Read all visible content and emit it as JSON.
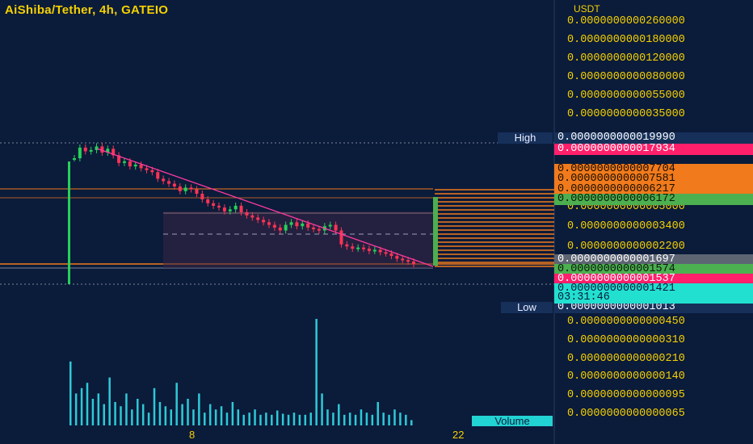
{
  "title": "AiShiba/Tether, 4h, GATEIO",
  "axis_unit": "USDT",
  "colors": {
    "background": "#0b1b3a",
    "axis_text": "#f5d100",
    "up_candle": "#26d15a",
    "down_candle": "#ff3355",
    "trendline": "#ff3aa0",
    "volume": "#2ec9d6",
    "orange": "#f07a1c",
    "green_tag": "#4caf50",
    "pink_tag": "#ff1f6b",
    "cyan_tag": "#22e0d0"
  },
  "y_axis_labels": [
    "0.0000000000260000",
    "0.0000000000180000",
    "0.0000000000120000",
    "0.0000000000080000",
    "0.0000000000055000",
    "0.0000000000035000",
    "0.0000000000018000",
    "0.0000000000005000",
    "0.0000000000003400",
    "0.0000000000002200"
  ],
  "volume_axis_labels": [
    "0.0000000000000450",
    "0.0000000000000310",
    "0.0000000000000210",
    "0.0000000000000140",
    "0.0000000000000095",
    "0.0000000000000065"
  ],
  "price_tags": [
    {
      "label": "High",
      "value": "0.0000000000019990",
      "kind": "navy"
    },
    {
      "label": "",
      "value": "0.0000000000017934",
      "kind": "pink"
    },
    {
      "label": "",
      "value": "0.0000000000007704",
      "kind": "orange"
    },
    {
      "label": "",
      "value": "0.0000000000007581",
      "kind": "orange"
    },
    {
      "label": "",
      "value": "0.0000000000006217",
      "kind": "orange"
    },
    {
      "label": "",
      "value": "0.0000000000006172",
      "kind": "green"
    },
    {
      "label": "",
      "value": "0.0000000000001697",
      "kind": "gray"
    },
    {
      "label": "",
      "value": "0.0000000000001574",
      "kind": "green"
    },
    {
      "label": "",
      "value": "0.0000000000001537",
      "kind": "pink"
    },
    {
      "label": "",
      "value": "0.0000000000001421",
      "kind": "cyan"
    },
    {
      "label": "Low",
      "value": "0.0000000000001013",
      "kind": "navy"
    }
  ],
  "countdown": "03:31:46",
  "x_axis_labels": [
    "8",
    "22"
  ],
  "volume_label": "Volume",
  "chart_data": {
    "type": "candlestick",
    "title": "AiShiba/Tether, 4h, GATEIO",
    "ylabel": "USDT",
    "yscale": "log",
    "high": "0.0000000000019990",
    "low": "0.0000000000001013",
    "last_price": "0.0000000000001421",
    "x_ticks": [
      "8",
      "22"
    ],
    "price_path": [
      1.5,
      1.9,
      1.75,
      1.8,
      1.95,
      1.7,
      1.85,
      1.6,
      1.35,
      1.4,
      1.25,
      1.3,
      1.2,
      1.15,
      1.1,
      0.95,
      0.9,
      0.85,
      0.8,
      0.72,
      0.78,
      0.75,
      0.68,
      0.6,
      0.55,
      0.52,
      0.5,
      0.46,
      0.48,
      0.52,
      0.45,
      0.42,
      0.4,
      0.38,
      0.36,
      0.34,
      0.32,
      0.3,
      0.34,
      0.36,
      0.33,
      0.35,
      0.32,
      0.31,
      0.3,
      0.33,
      0.34,
      0.3,
      0.22,
      0.21,
      0.2,
      0.205,
      0.2,
      0.19,
      0.195,
      0.185,
      0.18,
      0.17,
      0.16,
      0.155,
      0.15,
      0.142
    ],
    "volume_path": [
      0.6,
      0.3,
      0.35,
      0.4,
      0.25,
      0.3,
      0.2,
      0.45,
      0.22,
      0.18,
      0.3,
      0.15,
      0.25,
      0.2,
      0.12,
      0.35,
      0.22,
      0.18,
      0.15,
      0.4,
      0.2,
      0.25,
      0.15,
      0.3,
      0.12,
      0.2,
      0.15,
      0.18,
      0.12,
      0.22,
      0.15,
      0.1,
      0.12,
      0.15,
      0.1,
      0.12,
      0.1,
      0.14,
      0.11,
      0.1,
      0.12,
      0.1,
      0.1,
      0.12,
      1.0,
      0.3,
      0.15,
      0.12,
      0.2,
      0.1,
      0.12,
      0.1,
      0.15,
      0.12,
      0.1,
      0.22,
      0.12,
      0.1,
      0.15,
      0.12,
      0.1,
      0.05
    ]
  }
}
